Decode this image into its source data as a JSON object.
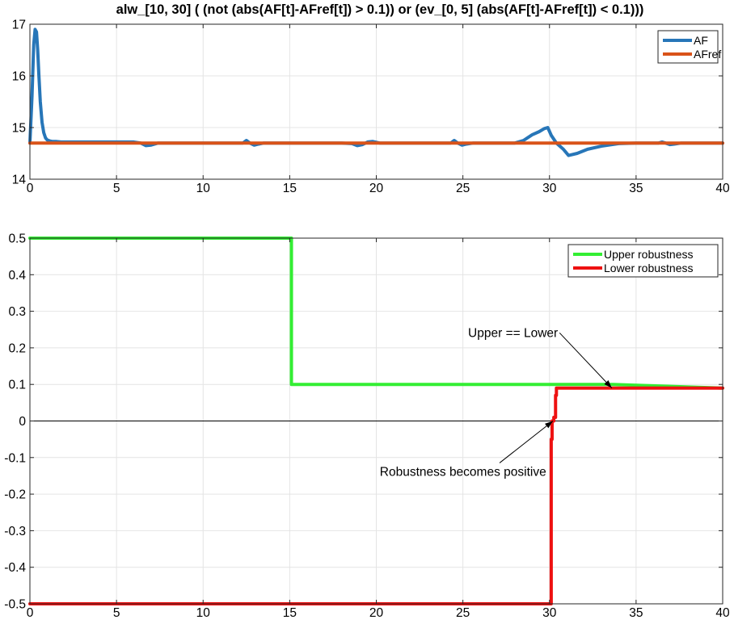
{
  "chart_data": [
    {
      "type": "line",
      "title": "alw_[10, 30] ( (not (abs(AF[t]-AFref[t]) > 0.1)) or (ev_[0, 5] (abs(AF[t]-AFref[t]) < 0.1)))",
      "xlabel": "",
      "ylabel": "",
      "xlim": [
        0,
        40
      ],
      "ylim": [
        14,
        17
      ],
      "xticks": [
        0,
        5,
        10,
        15,
        20,
        25,
        30,
        35,
        40
      ],
      "yticks": [
        14,
        15,
        16,
        17
      ],
      "grid": true,
      "legend_position": "top-right",
      "series": [
        {
          "name": "AF",
          "color": "#2776b8",
          "x": [
            0,
            0.12,
            0.22,
            0.3,
            0.38,
            0.45,
            0.52,
            0.6,
            0.7,
            0.8,
            0.9,
            1.0,
            1.15,
            1.3,
            1.5,
            1.8,
            2.2,
            3,
            4,
            5,
            6,
            6.4,
            6.7,
            7.0,
            7.4,
            8,
            9,
            10,
            11,
            12,
            12.3,
            12.5,
            12.7,
            12.95,
            13.2,
            13.5,
            14,
            15,
            16,
            17,
            18,
            18.6,
            18.9,
            19.2,
            19.5,
            19.8,
            20.2,
            21,
            22,
            23,
            24,
            24.3,
            24.5,
            24.7,
            24.95,
            25.2,
            25.6,
            26,
            27,
            28,
            28.5,
            29,
            29.4,
            29.7,
            29.9,
            30.1,
            30.4,
            30.8,
            31.1,
            31.6,
            32.2,
            33,
            34,
            35,
            36,
            36.3,
            36.5,
            36.7,
            36.95,
            37.2,
            37.6,
            38,
            39,
            40
          ],
          "y": [
            14.7,
            15.6,
            16.6,
            16.9,
            16.85,
            16.5,
            16.0,
            15.5,
            15.1,
            14.9,
            14.8,
            14.76,
            14.74,
            14.73,
            14.73,
            14.72,
            14.72,
            14.72,
            14.72,
            14.72,
            14.72,
            14.7,
            14.65,
            14.66,
            14.7,
            14.7,
            14.7,
            14.7,
            14.7,
            14.7,
            14.7,
            14.75,
            14.7,
            14.66,
            14.68,
            14.7,
            14.7,
            14.7,
            14.7,
            14.7,
            14.7,
            14.69,
            14.65,
            14.67,
            14.72,
            14.73,
            14.7,
            14.7,
            14.7,
            14.7,
            14.7,
            14.7,
            14.75,
            14.7,
            14.66,
            14.68,
            14.7,
            14.7,
            14.7,
            14.7,
            14.75,
            14.86,
            14.92,
            14.98,
            15.0,
            14.85,
            14.7,
            14.58,
            14.46,
            14.5,
            14.58,
            14.64,
            14.69,
            14.7,
            14.7,
            14.7,
            14.72,
            14.7,
            14.67,
            14.68,
            14.7,
            14.7,
            14.7,
            14.7
          ]
        },
        {
          "name": "AFref",
          "color": "#d95319",
          "x": [
            0,
            40
          ],
          "y": [
            14.7,
            14.7
          ]
        }
      ]
    },
    {
      "type": "line",
      "title": "",
      "xlabel": "",
      "ylabel": "",
      "xlim": [
        0,
        40
      ],
      "ylim": [
        -0.5,
        0.5
      ],
      "xticks": [
        0,
        5,
        10,
        15,
        20,
        25,
        30,
        35,
        40
      ],
      "yticks": [
        -0.5,
        -0.4,
        -0.3,
        -0.2,
        -0.1,
        0,
        0.1,
        0.2,
        0.3,
        0.4,
        0.5
      ],
      "ytick_labels": [
        "-0.5",
        "-0.4",
        "-0.3",
        "-0.2",
        "-0.1",
        "0",
        "0.1",
        "0.2",
        "0.3",
        "0.4",
        "0.5"
      ],
      "grid": true,
      "legend_position": "top-right",
      "reference_line_y": 0,
      "series": [
        {
          "name": "Upper robustness",
          "color": "#33ee33",
          "x": [
            0,
            15.1,
            15.1,
            33.6,
            40
          ],
          "y": [
            0.5,
            0.5,
            0.1,
            0.1,
            0.09
          ]
        },
        {
          "name": "Lower robustness",
          "color": "#ee1111",
          "x": [
            0,
            30.1,
            30.1,
            30.15,
            30.15,
            30.25,
            30.25,
            30.35,
            30.35,
            30.4,
            30.4,
            40
          ],
          "y": [
            -0.5,
            -0.5,
            -0.05,
            -0.05,
            0.0,
            0.0,
            0.01,
            0.01,
            0.07,
            0.07,
            0.09,
            0.09
          ]
        }
      ],
      "annotations": [
        {
          "text": "Upper == Lower",
          "x": 25.3,
          "y": 0.23,
          "arrow_to": [
            33.6,
            0.09
          ]
        },
        {
          "text": "Robustness becomes positive",
          "x": 20.2,
          "y": -0.15,
          "arrow_to": [
            30.2,
            0.0
          ]
        }
      ]
    }
  ]
}
